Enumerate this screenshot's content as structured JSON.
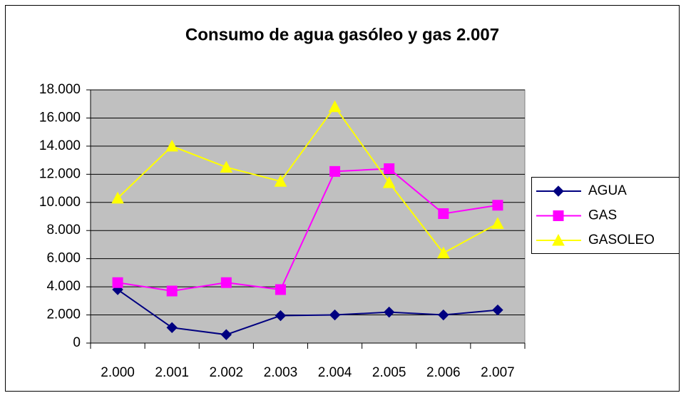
{
  "chart_data": {
    "type": "line",
    "title": "Consumo de agua gasóleo y gas 2.007",
    "categories": [
      "2.000",
      "2.001",
      "2.002",
      "2.003",
      "2.004",
      "2.005",
      "2.006",
      "2.007"
    ],
    "series": [
      {
        "name": "AGUA",
        "color": "#000080",
        "marker": "diamond",
        "values": [
          3800,
          1100,
          600,
          1950,
          2000,
          2200,
          2000,
          2350
        ]
      },
      {
        "name": "GAS",
        "color": "#ff00ff",
        "marker": "square",
        "values": [
          4300,
          3700,
          4300,
          3800,
          12200,
          12400,
          9200,
          9800
        ]
      },
      {
        "name": "GASOLEO",
        "color": "#ffff00",
        "marker": "triangle",
        "values": [
          10300,
          14000,
          12500,
          11500,
          16800,
          11400,
          6400,
          8500
        ]
      }
    ],
    "ylim": [
      0,
      18000
    ],
    "yticks": [
      0,
      {
        "value": 2000,
        "label": "2.000"
      },
      {
        "value": 4000,
        "label": "4.000"
      },
      {
        "value": 6000,
        "label": "6.000"
      },
      {
        "value": 8000,
        "label": "8.000"
      },
      {
        "value": 10000,
        "label": "10.000"
      },
      {
        "value": 12000,
        "label": "12.000"
      },
      {
        "value": 14000,
        "label": "14.000"
      },
      {
        "value": 16000,
        "label": "16.000"
      },
      {
        "value": 18000,
        "label": "18.000"
      }
    ],
    "grid": true,
    "legend": "right",
    "plot_background": "#c0c0c0"
  }
}
